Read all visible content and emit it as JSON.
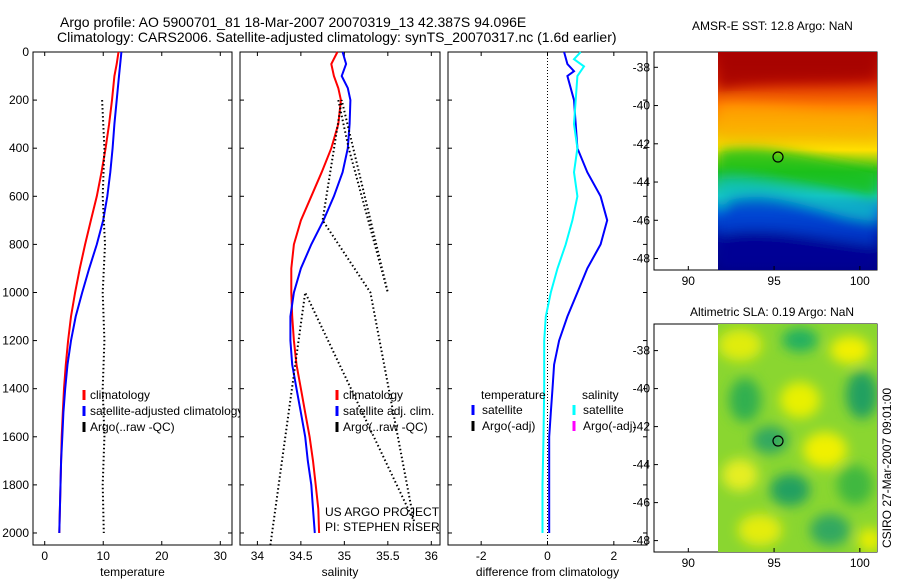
{
  "title_line1": "Argo profile: AO 5900701_81 18-Mar-2007 20070319_13 42.387S 94.096E",
  "title_line2": "Climatology: CARS2006. Satellite-adjusted climatology: synTS_20070317.nc (1.6d earlier)",
  "credit_line1": "US ARGO PROJECT",
  "credit_line2": "PI: STEPHEN RISER",
  "side_label": "CSIRO 27-Mar-2007 09:01:00",
  "colors": {
    "red": "#ff0000",
    "blue": "#0000ff",
    "cyan": "#00ffff",
    "black": "#000000",
    "magenta": "#ff00ff"
  },
  "chart_data": [
    {
      "type": "line",
      "xlabel": "temperature",
      "xlim": [
        -2,
        32
      ],
      "xticks": [
        0,
        10,
        20,
        30
      ],
      "ylim": [
        2050,
        0
      ],
      "yticks": [
        0,
        200,
        400,
        600,
        800,
        1000,
        1200,
        1400,
        1600,
        1800,
        2000
      ],
      "legend": [
        "climatology",
        "satellite-adjusted climatology",
        "Argo(..raw -QC)"
      ],
      "series": [
        {
          "name": "climatology",
          "color": "#ff0000",
          "style": "solid",
          "points": [
            [
              12.6,
              0
            ],
            [
              12.3,
              50
            ],
            [
              11.9,
              100
            ],
            [
              11.5,
              200
            ],
            [
              11.0,
              300
            ],
            [
              10.4,
              400
            ],
            [
              9.7,
              500
            ],
            [
              8.9,
              600
            ],
            [
              7.9,
              700
            ],
            [
              6.9,
              800
            ],
            [
              6.0,
              900
            ],
            [
              5.2,
              1000
            ],
            [
              4.5,
              1100
            ],
            [
              4.0,
              1200
            ],
            [
              3.6,
              1300
            ],
            [
              3.3,
              1400
            ],
            [
              3.1,
              1500
            ],
            [
              2.9,
              1600
            ],
            [
              2.8,
              1700
            ],
            [
              2.7,
              1800
            ],
            [
              2.6,
              1900
            ],
            [
              2.5,
              2000
            ]
          ]
        },
        {
          "name": "satellite-adjusted climatology",
          "color": "#0000ff",
          "style": "solid",
          "points": [
            [
              13.1,
              0
            ],
            [
              12.9,
              50
            ],
            [
              12.7,
              100
            ],
            [
              12.3,
              200
            ],
            [
              11.9,
              300
            ],
            [
              11.6,
              400
            ],
            [
              11.2,
              500
            ],
            [
              10.7,
              600
            ],
            [
              10.0,
              700
            ],
            [
              8.9,
              800
            ],
            [
              7.6,
              900
            ],
            [
              6.4,
              1000
            ],
            [
              5.3,
              1100
            ],
            [
              4.5,
              1200
            ],
            [
              3.9,
              1300
            ],
            [
              3.5,
              1400
            ],
            [
              3.2,
              1500
            ],
            [
              3.0,
              1600
            ],
            [
              2.8,
              1700
            ],
            [
              2.7,
              1800
            ],
            [
              2.6,
              1900
            ],
            [
              2.5,
              2000
            ]
          ]
        },
        {
          "name": "Argo(..raw -QC)",
          "color": "#000000",
          "style": "dotted",
          "points": [
            [
              9.8,
              200
            ],
            [
              10.2,
              400
            ],
            [
              9.9,
              600
            ],
            [
              10.3,
              800
            ],
            [
              9.9,
              1000
            ],
            [
              10.2,
              1200
            ],
            [
              9.9,
              1400
            ],
            [
              10.2,
              1600
            ],
            [
              9.9,
              1800
            ],
            [
              10.1,
              2000
            ]
          ]
        }
      ]
    },
    {
      "type": "line",
      "xlabel": "salinity",
      "xlim": [
        33.8,
        36.1
      ],
      "xticks": [
        34,
        34.5,
        35,
        35.5,
        36
      ],
      "ylim": [
        2050,
        0
      ],
      "yticks": [
        0,
        200,
        400,
        600,
        800,
        1000,
        1200,
        1400,
        1600,
        1800,
        2000
      ],
      "legend": [
        "climatology",
        "satellite adj. clim.",
        "Argo(..raw -QC)"
      ],
      "series": [
        {
          "name": "climatology",
          "color": "#ff0000",
          "style": "solid",
          "points": [
            [
              34.92,
              0
            ],
            [
              34.85,
              50
            ],
            [
              34.88,
              100
            ],
            [
              34.93,
              150
            ],
            [
              34.96,
              200
            ],
            [
              34.93,
              300
            ],
            [
              34.85,
              400
            ],
            [
              34.74,
              500
            ],
            [
              34.62,
              600
            ],
            [
              34.5,
              700
            ],
            [
              34.42,
              800
            ],
            [
              34.39,
              900
            ],
            [
              34.39,
              1000
            ],
            [
              34.4,
              1100
            ],
            [
              34.42,
              1200
            ],
            [
              34.45,
              1300
            ],
            [
              34.5,
              1400
            ],
            [
              34.55,
              1500
            ],
            [
              34.6,
              1600
            ],
            [
              34.64,
              1700
            ],
            [
              34.67,
              1800
            ],
            [
              34.7,
              1900
            ],
            [
              34.71,
              2000
            ]
          ]
        },
        {
          "name": "satellite adj. clim.",
          "color": "#0000ff",
          "style": "solid",
          "points": [
            [
              34.98,
              0
            ],
            [
              35.02,
              50
            ],
            [
              34.97,
              100
            ],
            [
              35.04,
              150
            ],
            [
              35.07,
              200
            ],
            [
              35.06,
              300
            ],
            [
              35.04,
              400
            ],
            [
              34.98,
              500
            ],
            [
              34.88,
              600
            ],
            [
              34.76,
              700
            ],
            [
              34.62,
              800
            ],
            [
              34.5,
              900
            ],
            [
              34.42,
              1000
            ],
            [
              34.38,
              1100
            ],
            [
              34.38,
              1200
            ],
            [
              34.4,
              1300
            ],
            [
              34.45,
              1400
            ],
            [
              34.5,
              1500
            ],
            [
              34.55,
              1600
            ],
            [
              34.58,
              1700
            ],
            [
              34.62,
              1800
            ],
            [
              34.64,
              1900
            ],
            [
              34.66,
              2000
            ]
          ]
        },
        {
          "name": "Argo(..raw -QC)",
          "color": "#000000",
          "style": "dotted",
          "points": [
            [
              34.93,
              200
            ],
            [
              35.05,
              400
            ],
            [
              35.5,
              1000
            ],
            [
              34.97,
              200
            ],
            [
              34.75,
              700
            ],
            [
              35.3,
              1000
            ],
            [
              35.8,
              1950
            ],
            [
              34.55,
              1000
            ],
            [
              34.15,
              2050
            ]
          ]
        }
      ]
    },
    {
      "type": "line",
      "xlabel": "difference from climatology",
      "xlim": [
        -3,
        3
      ],
      "xticks": [
        -2,
        0,
        2
      ],
      "ylim": [
        2050,
        0
      ],
      "yticks": [
        0,
        200,
        400,
        600,
        800,
        1000,
        1200,
        1400,
        1600,
        1800,
        2000
      ],
      "legend_headers": [
        "temperature",
        "salinity"
      ],
      "legend": [
        "satellite",
        "Argo(-adj)",
        "satellite",
        "Argo(-adj)"
      ],
      "series": [
        {
          "name": "temperature satellite",
          "color": "#0000ff",
          "style": "solid",
          "points": [
            [
              0.5,
              0
            ],
            [
              0.6,
              50
            ],
            [
              0.8,
              80
            ],
            [
              0.6,
              100
            ],
            [
              0.8,
              200
            ],
            [
              0.85,
              300
            ],
            [
              0.9,
              400
            ],
            [
              1.2,
              500
            ],
            [
              1.6,
              600
            ],
            [
              1.8,
              700
            ],
            [
              1.6,
              800
            ],
            [
              1.2,
              900
            ],
            [
              0.9,
              1000
            ],
            [
              0.6,
              1100
            ],
            [
              0.35,
              1200
            ],
            [
              0.2,
              1300
            ],
            [
              0.15,
              1400
            ],
            [
              0.1,
              1500
            ],
            [
              0.05,
              1600
            ],
            [
              0.05,
              1800
            ],
            [
              0.05,
              2000
            ]
          ]
        },
        {
          "name": "salinity satellite",
          "color": "#00ffff",
          "style": "solid",
          "points": [
            [
              1.0,
              0
            ],
            [
              0.8,
              30
            ],
            [
              1.1,
              60
            ],
            [
              0.9,
              100
            ],
            [
              0.85,
              200
            ],
            [
              0.8,
              300
            ],
            [
              0.9,
              400
            ],
            [
              0.8,
              500
            ],
            [
              0.9,
              600
            ],
            [
              0.75,
              700
            ],
            [
              0.55,
              800
            ],
            [
              0.3,
              900
            ],
            [
              0.1,
              1000
            ],
            [
              -0.05,
              1100
            ],
            [
              -0.1,
              1200
            ],
            [
              -0.1,
              1400
            ],
            [
              -0.12,
              1600
            ],
            [
              -0.15,
              1800
            ],
            [
              -0.15,
              2000
            ]
          ]
        }
      ]
    },
    {
      "type": "heatmap",
      "title": "AMSR-E SST: 12.8 Argo: NaN",
      "xticks": [
        90,
        95,
        100
      ],
      "yticks": [
        -38,
        -40,
        -42,
        -44,
        -46,
        -48
      ],
      "marker": [
        94.1,
        -42.4
      ]
    },
    {
      "type": "heatmap",
      "title": "Altimetric SLA: 0.19 Argo: NaN",
      "xticks": [
        90,
        95,
        100
      ],
      "yticks": [
        -38,
        -40,
        -42,
        -44,
        -46,
        -48
      ],
      "marker": [
        94.1,
        -42.4
      ]
    }
  ]
}
